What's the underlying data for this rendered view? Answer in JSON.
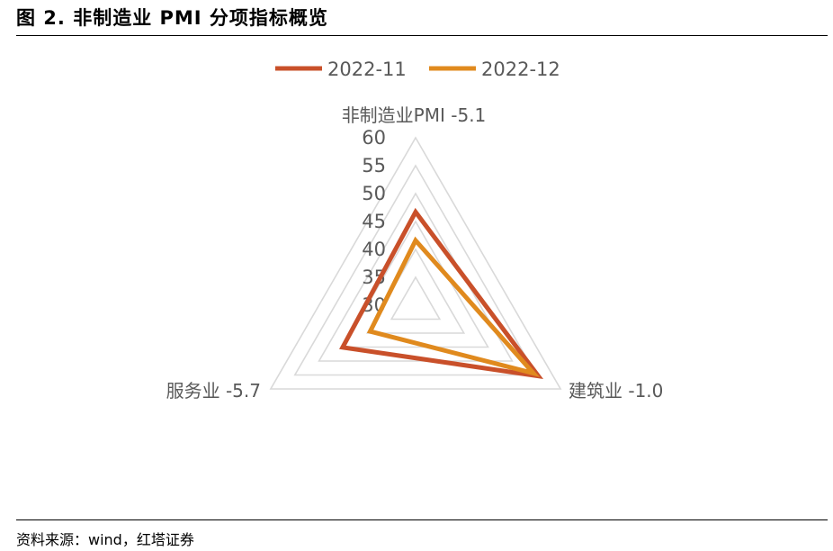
{
  "figure": {
    "title": "图 2. 非制造业 PMI 分项指标概览",
    "source": "资料来源：wind，红塔证券"
  },
  "colors": {
    "series_2022_11": "#c9502a",
    "series_2022_12": "#e08a1e",
    "grid": "#d9d9d9",
    "text": "#595959"
  },
  "chart_data": {
    "type": "radar",
    "axes": [
      "非制造业PMI -5.1",
      "建筑业 -1.0",
      "服务业 -5.7"
    ],
    "rlim": [
      30,
      60
    ],
    "ticks": [
      "30",
      "35",
      "40",
      "45",
      "50",
      "55",
      "60"
    ],
    "grid": true,
    "legend_position": "top",
    "series": [
      {
        "name": "2022-11",
        "values": [
          46.7,
          55.4,
          45.1
        ]
      },
      {
        "name": "2022-12",
        "values": [
          41.6,
          54.4,
          39.4
        ]
      }
    ]
  }
}
